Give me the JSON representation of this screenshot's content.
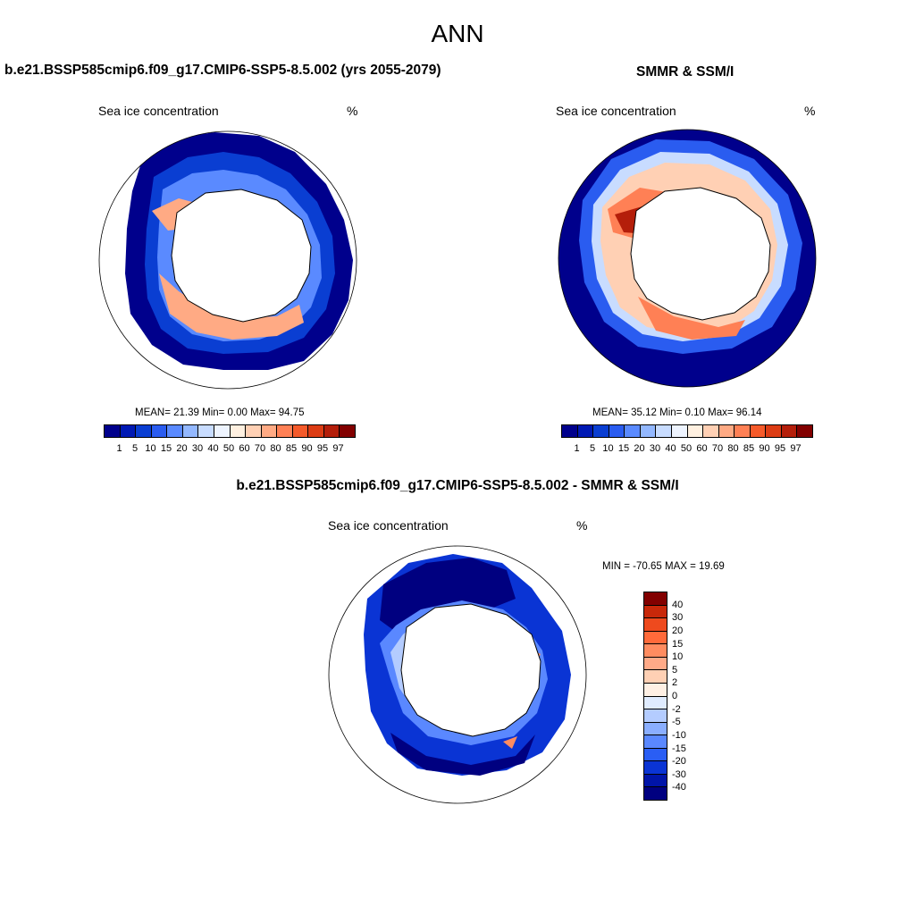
{
  "main_title": "ANN",
  "panels": {
    "model": {
      "title": "b.e21.BSSP585cmip6.f09_g17.CMIP6-SSP5-8.5.002 (yrs 2055-2079)",
      "variable": "Sea ice concentration",
      "units": "%",
      "stats": "MEAN=  21.39  Min=   0.00  Max=  94.75"
    },
    "obs": {
      "title": "SMMR & SSM/I",
      "variable": "Sea ice concentration",
      "units": "%",
      "stats": "MEAN=  35.12  Min=   0.10  Max=  96.14"
    },
    "diff": {
      "title": "b.e21.BSSP585cmip6.f09_g17.CMIP6-SSP5-8.5.002 - SMMR & SSM/I",
      "variable": "Sea ice concentration",
      "units": "%",
      "stats": "MIN = -70.65 MAX =  19.69"
    }
  },
  "colorbar_main": {
    "labels": [
      "1",
      "5",
      "10",
      "15",
      "20",
      "30",
      "40",
      "50",
      "60",
      "70",
      "80",
      "85",
      "90",
      "95",
      "97"
    ],
    "colors": [
      "#00008c",
      "#0019b4",
      "#0a3ed2",
      "#2a5cf0",
      "#5a8aff",
      "#93b8ff",
      "#c8dcff",
      "#eef4ff",
      "#fff0e0",
      "#ffd0b4",
      "#ffaa84",
      "#ff8055",
      "#f55a2a",
      "#dc3c14",
      "#b41e0a",
      "#820000"
    ]
  },
  "colorbar_diff": {
    "labels": [
      "40",
      "30",
      "20",
      "15",
      "10",
      "5",
      "2",
      "0",
      "-2",
      "-5",
      "-10",
      "-15",
      "-20",
      "-30",
      "-40"
    ],
    "colors": [
      "#820000",
      "#c8280a",
      "#ee4a1e",
      "#ff6a3a",
      "#ff8c60",
      "#ffaa88",
      "#ffd0b4",
      "#fff0e4",
      "#e0ecff",
      "#b4ccff",
      "#8aaeff",
      "#5a88ff",
      "#2a5ef4",
      "#0a34d4",
      "#0014a8",
      "#000080"
    ]
  }
}
